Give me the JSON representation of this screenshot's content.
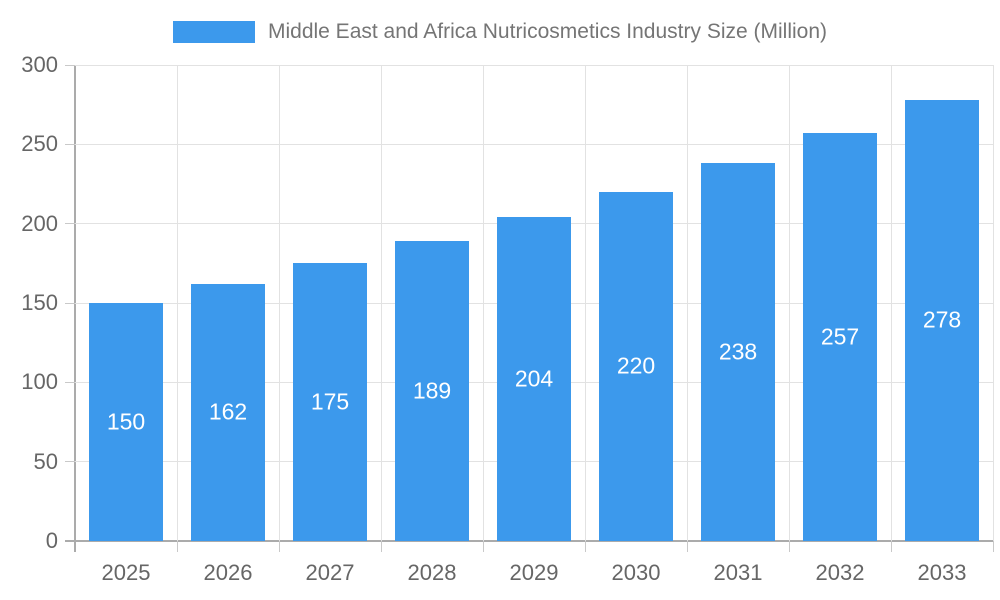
{
  "colors": {
    "bar": "#3C99EC",
    "bar_label_text": "#FFFFFF",
    "legend_text": "#757575",
    "axis_text": "#666666",
    "gridline": "#E2E2E2",
    "axis_line": "#ABABAB",
    "tick": "#C9C9C9",
    "background": "#FFFFFF"
  },
  "chart_data": {
    "type": "bar",
    "categories": [
      "2025",
      "2026",
      "2027",
      "2028",
      "2029",
      "2030",
      "2031",
      "2032",
      "2033"
    ],
    "values": [
      150,
      162,
      175,
      189,
      204,
      220,
      238,
      257,
      278
    ],
    "title": "Middle East and Africa Nutricosmetics Industry Size (Million)",
    "xlabel": "",
    "ylabel": "",
    "ylim": [
      0,
      300
    ],
    "ytick_step": 50,
    "yticks": [
      "0",
      "50",
      "100",
      "150",
      "200",
      "250",
      "300"
    ],
    "grid": "on",
    "legend_position": "top",
    "bar_value_labels": "inside-center"
  }
}
